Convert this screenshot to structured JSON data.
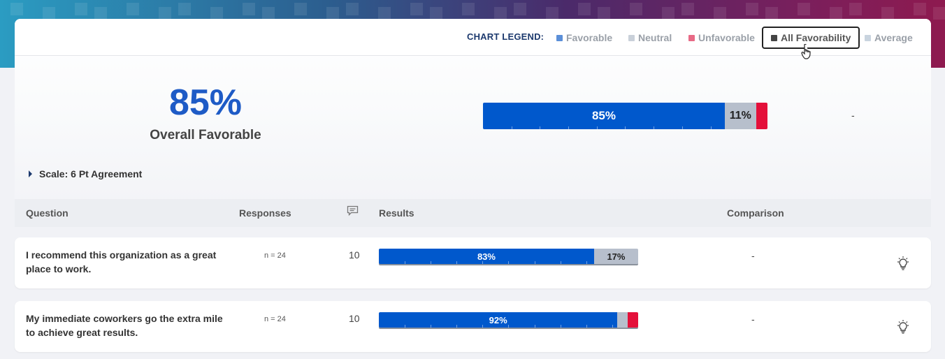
{
  "legend": {
    "title": "CHART LEGEND:",
    "items": [
      {
        "label": "Favorable",
        "color": "#5b8fd8"
      },
      {
        "label": "Neutral",
        "color": "#c9d0d9"
      },
      {
        "label": "Unfavorable",
        "color": "#e86a86"
      },
      {
        "label": "All Favorability",
        "color": "#444444",
        "active": true
      },
      {
        "label": "Average",
        "color": "#c9d4df"
      }
    ]
  },
  "summary": {
    "percent": "85%",
    "label": "Overall Favorable",
    "favorable_label": "85%",
    "neutral_label": "11%",
    "favorable": 85,
    "neutral": 11,
    "unfavorable": 4,
    "comparison": "-"
  },
  "scale": {
    "label": "Scale: 6 Pt Agreement"
  },
  "table": {
    "headers": {
      "question": "Question",
      "responses": "Responses",
      "comments_icon": "comment-icon",
      "results": "Results",
      "comparison": "Comparison"
    },
    "rows": [
      {
        "question": "I recommend this organization as a great place to work.",
        "responses": "n = 24",
        "comments": "10",
        "favorable": 83,
        "neutral": 17,
        "unfavorable": 0,
        "favorable_label": "83%",
        "neutral_label": "17%",
        "comparison": "-",
        "icon": "lightbulb-icon"
      },
      {
        "question": "My immediate coworkers go the extra mile to achieve great results.",
        "responses": "n = 24",
        "comments": "10",
        "favorable": 92,
        "neutral": 4,
        "unfavorable": 4,
        "favorable_label": "92%",
        "neutral_label": "",
        "comparison": "-",
        "icon": "lightbulb-icon"
      }
    ]
  }
}
